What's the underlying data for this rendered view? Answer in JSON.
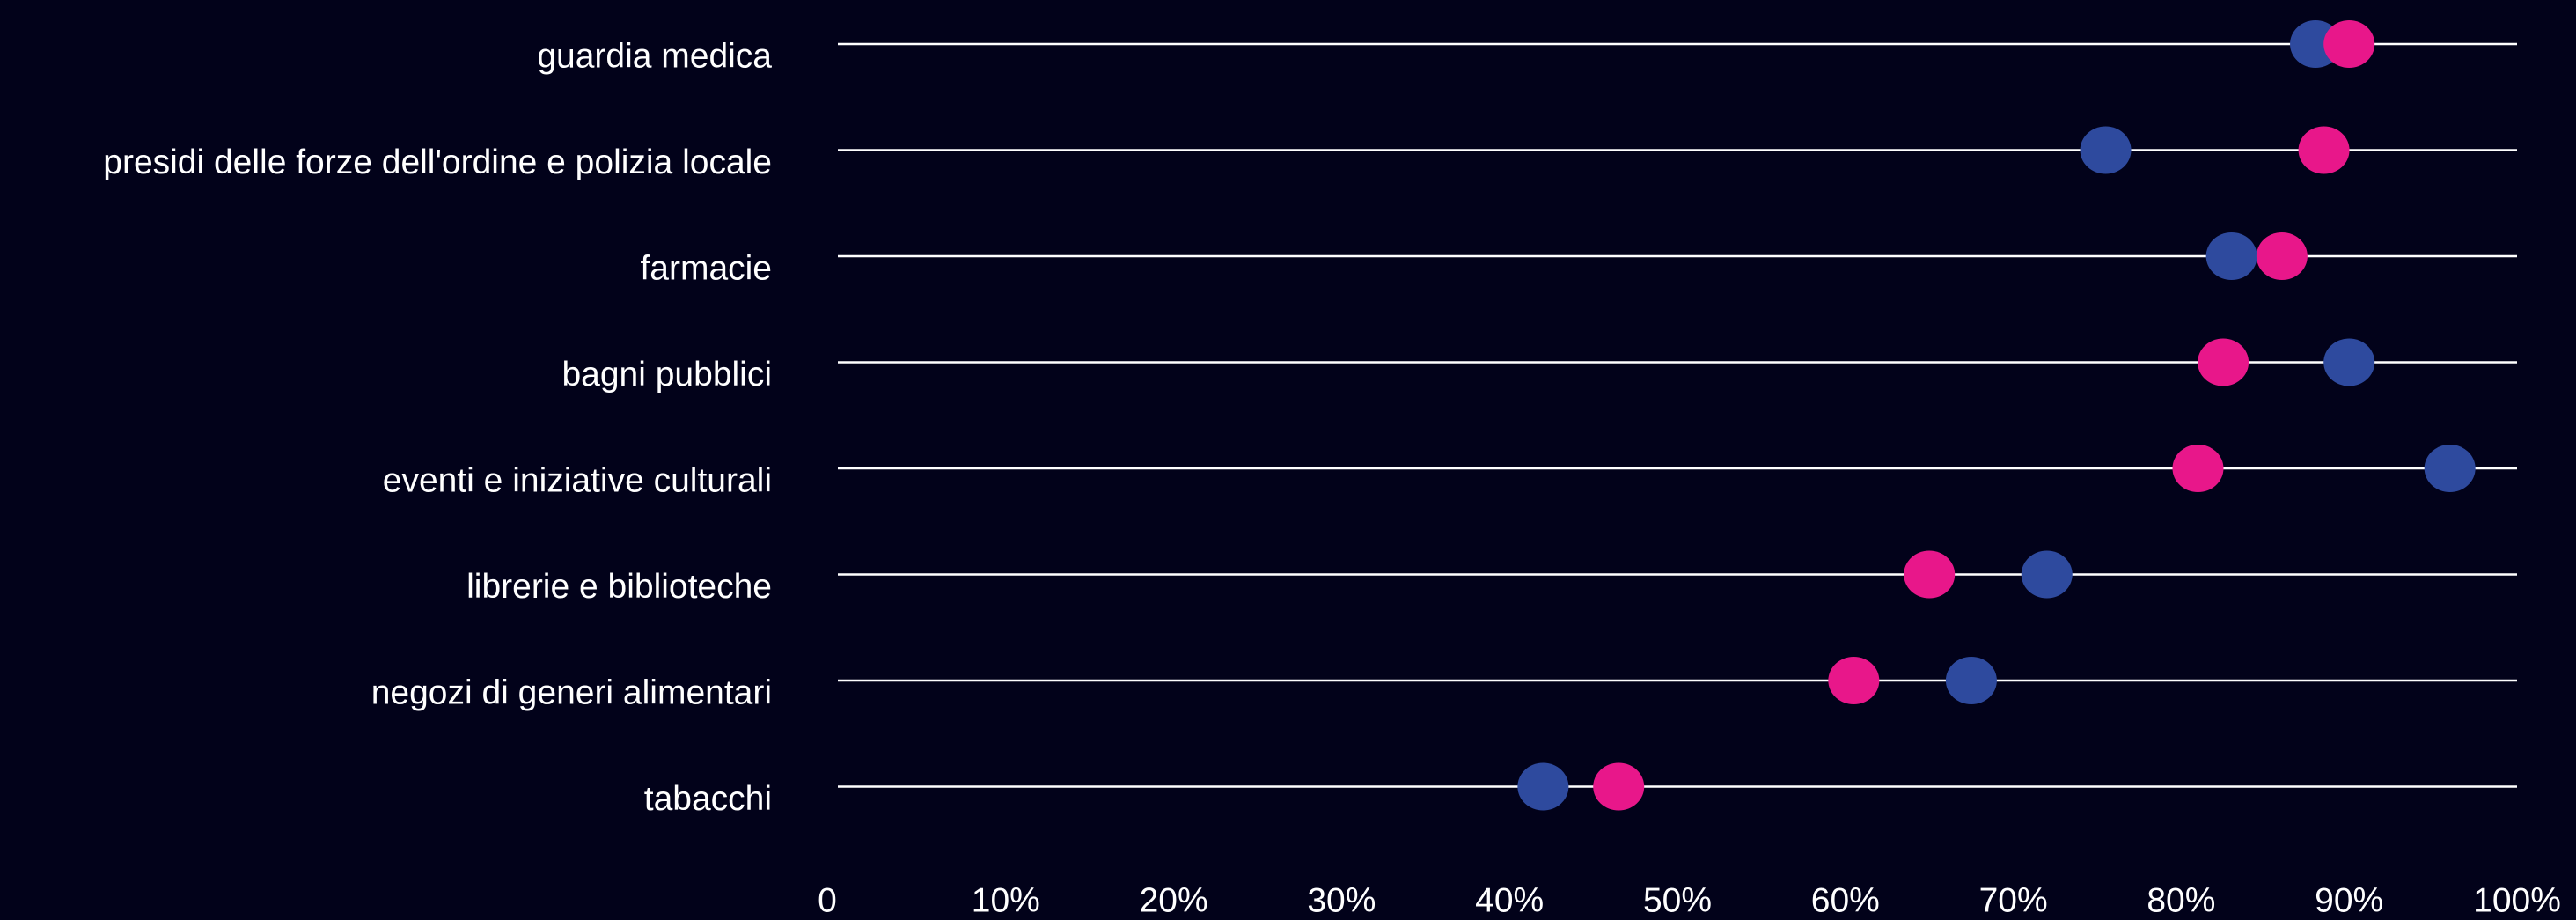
{
  "chart_data": {
    "type": "scatter",
    "subtype": "dumbbell",
    "title": "",
    "xlabel": "",
    "ylabel": "",
    "xlim": [
      0,
      100
    ],
    "x_unit": "%",
    "x_ticks": [
      "0",
      "10%",
      "20%",
      "30%",
      "40%",
      "50%",
      "60%",
      "70%",
      "80%",
      "90%",
      "100%"
    ],
    "categories": [
      "guardia medica",
      "presidi delle forze dell'ordine e polizia locale",
      "farmacie",
      "bagni pubblici",
      "eventi e iniziative culturali",
      "librerie e biblioteche",
      "negozi di generi alimentari",
      "tabacchi"
    ],
    "series": [
      {
        "color": "#2e4a9e",
        "values": [
          88,
          75.5,
          83,
          90,
          96,
          72,
          67.5,
          42
        ]
      },
      {
        "color": "#e8178a",
        "values": [
          90,
          88.5,
          86,
          82.5,
          81,
          65,
          60.5,
          46.5
        ]
      }
    ],
    "grid": false,
    "legend": "none",
    "background": "#02021a",
    "line_color": "#ffffff"
  }
}
